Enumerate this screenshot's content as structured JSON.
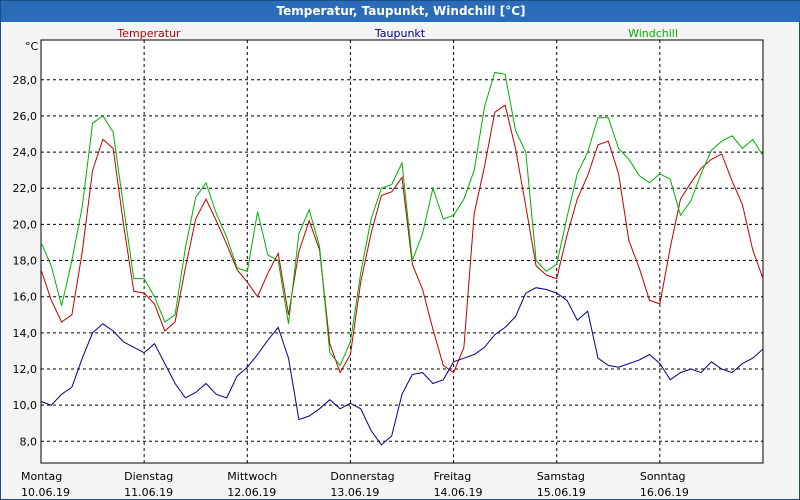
{
  "window": {
    "title": "Temperatur, Taupunkt, Windchill [°C]"
  },
  "chart_data": {
    "type": "line",
    "title": "Temperatur, Taupunkt, Windchill [°C]",
    "ylabel": "°C",
    "ylim": [
      6.8,
      30.2
    ],
    "yticks": [
      8,
      10,
      12,
      14,
      16,
      18,
      20,
      22,
      24,
      26,
      28
    ],
    "ytick_labels": [
      "8,0",
      "10,0",
      "12,0",
      "14,0",
      "16,0",
      "18,0",
      "20,0",
      "22,0",
      "24,0",
      "26,0",
      "28,0"
    ],
    "xlim": [
      0,
      7
    ],
    "grid": true,
    "days": [
      {
        "name": "Montag",
        "date": "10.06.19"
      },
      {
        "name": "Dienstag",
        "date": "11.06.19"
      },
      {
        "name": "Mittwoch",
        "date": "12.06.19"
      },
      {
        "name": "Donnerstag",
        "date": "13.06.19"
      },
      {
        "name": "Freitag",
        "date": "14.06.19"
      },
      {
        "name": "Samstag",
        "date": "15.06.19"
      },
      {
        "name": "Sonntag",
        "date": "16.06.19"
      }
    ],
    "series": [
      {
        "name": "Temperatur",
        "color": "#c00000",
        "x": [
          0,
          0.1,
          0.2,
          0.3,
          0.4,
          0.5,
          0.6,
          0.7,
          0.8,
          0.9,
          1.0,
          1.1,
          1.2,
          1.3,
          1.4,
          1.5,
          1.6,
          1.7,
          1.8,
          1.9,
          2.0,
          2.1,
          2.2,
          2.3,
          2.4,
          2.5,
          2.6,
          2.7,
          2.8,
          2.9,
          3.0,
          3.1,
          3.2,
          3.3,
          3.4,
          3.5,
          3.6,
          3.7,
          3.8,
          3.9,
          4.0,
          4.1,
          4.2,
          4.3,
          4.4,
          4.5,
          4.6,
          4.7,
          4.8,
          4.9,
          5.0,
          5.1,
          5.2,
          5.3,
          5.4,
          5.5,
          5.6,
          5.7,
          5.8,
          5.9,
          6.0,
          6.1,
          6.2,
          6.3,
          6.4,
          6.5,
          6.6,
          6.7,
          6.8,
          6.9,
          7.0
        ],
        "values": [
          17.5,
          15.8,
          14.6,
          15.0,
          18.5,
          23.0,
          24.7,
          24.2,
          20.0,
          16.3,
          16.2,
          15.6,
          14.1,
          14.6,
          17.6,
          20.3,
          21.4,
          20.2,
          18.9,
          17.5,
          16.8,
          16.0,
          17.3,
          18.4,
          15.0,
          18.5,
          20.2,
          18.6,
          13.4,
          11.8,
          12.8,
          16.8,
          19.5,
          21.6,
          21.8,
          22.6,
          17.8,
          16.4,
          14.2,
          12.2,
          11.8,
          13.2,
          20.6,
          23.2,
          26.2,
          26.6,
          24.2,
          21.0,
          17.7,
          17.2,
          17.0,
          19.4,
          21.4,
          22.7,
          24.4,
          24.6,
          22.8,
          19.1,
          17.6,
          15.8,
          15.6,
          18.7,
          21.4,
          22.3,
          23.1,
          23.6,
          23.9,
          22.4,
          21.1,
          18.6,
          17.0
        ]
      },
      {
        "name": "Taupunkt",
        "color": "#00008c",
        "x": [
          0,
          0.1,
          0.2,
          0.3,
          0.4,
          0.5,
          0.6,
          0.7,
          0.8,
          0.9,
          1.0,
          1.1,
          1.2,
          1.3,
          1.4,
          1.5,
          1.6,
          1.7,
          1.8,
          1.9,
          2.0,
          2.1,
          2.2,
          2.3,
          2.4,
          2.5,
          2.6,
          2.7,
          2.8,
          2.9,
          3.0,
          3.1,
          3.2,
          3.3,
          3.4,
          3.5,
          3.6,
          3.7,
          3.8,
          3.9,
          4.0,
          4.1,
          4.2,
          4.3,
          4.4,
          4.5,
          4.6,
          4.7,
          4.8,
          4.9,
          5.0,
          5.1,
          5.2,
          5.3,
          5.4,
          5.5,
          5.6,
          5.7,
          5.8,
          5.9,
          6.0,
          6.1,
          6.2,
          6.3,
          6.4,
          6.5,
          6.6,
          6.7,
          6.8,
          6.9,
          7.0
        ],
        "values": [
          10.2,
          10.0,
          10.6,
          11.0,
          12.6,
          14.0,
          14.5,
          14.1,
          13.5,
          13.2,
          12.9,
          13.4,
          12.3,
          11.2,
          10.4,
          10.7,
          11.2,
          10.6,
          10.4,
          11.6,
          12.1,
          12.8,
          13.6,
          14.3,
          12.6,
          9.2,
          9.4,
          9.8,
          10.3,
          9.8,
          10.1,
          9.8,
          8.6,
          7.8,
          8.3,
          10.6,
          11.7,
          11.8,
          11.2,
          11.4,
          12.4,
          12.6,
          12.8,
          13.2,
          13.9,
          14.3,
          14.9,
          16.2,
          16.5,
          16.4,
          16.2,
          15.8,
          14.7,
          15.2,
          12.6,
          12.2,
          12.1,
          12.3,
          12.5,
          12.8,
          12.3,
          11.4,
          11.8,
          12.0,
          11.8,
          12.4,
          12.0,
          11.8,
          12.3,
          12.6,
          13.1
        ]
      },
      {
        "name": "Windchill",
        "color": "#00b000",
        "x": [
          0,
          0.1,
          0.2,
          0.3,
          0.4,
          0.5,
          0.6,
          0.7,
          0.8,
          0.9,
          1.0,
          1.1,
          1.2,
          1.3,
          1.4,
          1.5,
          1.6,
          1.7,
          1.8,
          1.9,
          2.0,
          2.1,
          2.2,
          2.3,
          2.4,
          2.5,
          2.6,
          2.7,
          2.8,
          2.9,
          3.0,
          3.1,
          3.2,
          3.3,
          3.4,
          3.5,
          3.6,
          3.7,
          3.8,
          3.9,
          4.0,
          4.1,
          4.2,
          4.3,
          4.4,
          4.5,
          4.6,
          4.7,
          4.8,
          4.9,
          5.0,
          5.1,
          5.2,
          5.3,
          5.4,
          5.5,
          5.6,
          5.7,
          5.8,
          5.9,
          6.0,
          6.1,
          6.2,
          6.3,
          6.4,
          6.5,
          6.6,
          6.7,
          6.8,
          6.9,
          7.0
        ],
        "values": [
          19.0,
          17.7,
          15.5,
          18.0,
          21.0,
          25.6,
          26.0,
          25.1,
          21.0,
          17.0,
          17.0,
          16.0,
          14.6,
          15.0,
          18.7,
          21.5,
          22.3,
          20.6,
          19.3,
          17.6,
          17.4,
          20.7,
          18.3,
          18.0,
          14.5,
          19.5,
          20.8,
          18.8,
          12.9,
          12.2,
          13.5,
          17.3,
          20.3,
          22.0,
          22.2,
          23.4,
          18.0,
          19.5,
          22.0,
          20.3,
          20.5,
          21.4,
          23.0,
          26.5,
          28.4,
          28.3,
          25.2,
          24.0,
          18.0,
          17.4,
          17.8,
          20.4,
          22.8,
          24.0,
          25.9,
          25.9,
          24.2,
          23.6,
          22.7,
          22.3,
          22.8,
          22.5,
          20.5,
          21.3,
          22.8,
          24.1,
          24.6,
          24.9,
          24.2,
          24.7,
          23.8
        ]
      }
    ]
  }
}
